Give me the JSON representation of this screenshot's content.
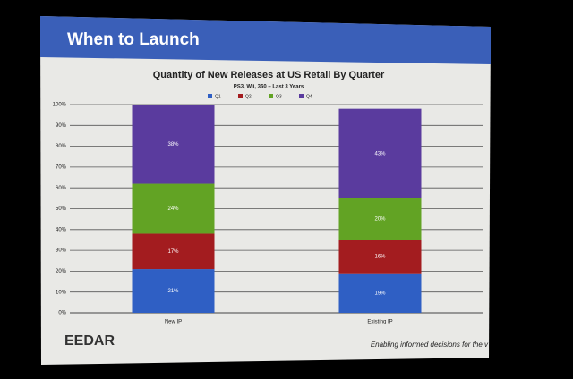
{
  "slide_title": "When to Launch",
  "footer": {
    "logo": "EEDAR",
    "tagline": "Enabling informed decisions for the v"
  },
  "chart_data": {
    "type": "stacked_bar",
    "title": "Quantity of New Releases at US Retail By Quarter",
    "subtitle": "PS3, Wii, 360 – Last 3 Years",
    "categories": [
      "New IP",
      "Existing IP"
    ],
    "series": [
      {
        "name": "Q1",
        "color": "#2f5fc4",
        "values": [
          21,
          19
        ],
        "value_labels": [
          "21%",
          "19%"
        ]
      },
      {
        "name": "Q2",
        "color": "#a31c1f",
        "values": [
          17,
          16
        ],
        "value_labels": [
          "17%",
          "16%"
        ]
      },
      {
        "name": "Q3",
        "color": "#62a324",
        "values": [
          24,
          20
        ],
        "value_labels": [
          "24%",
          "20%"
        ]
      },
      {
        "name": "Q4",
        "color": "#5a3b9e",
        "values": [
          38,
          43
        ],
        "value_labels": [
          "38%",
          "43%"
        ]
      }
    ],
    "ylim": [
      0,
      100
    ],
    "yticks": [
      {
        "value": 0,
        "label": "0%"
      },
      {
        "value": 10,
        "label": "10%"
      },
      {
        "value": 20,
        "label": "20%"
      },
      {
        "value": 30,
        "label": "30%"
      },
      {
        "value": 40,
        "label": "40%"
      },
      {
        "value": 50,
        "label": "50%"
      },
      {
        "value": 60,
        "label": "60%"
      },
      {
        "value": 70,
        "label": "70%"
      },
      {
        "value": 80,
        "label": "80%"
      },
      {
        "value": 90,
        "label": "90%"
      },
      {
        "value": 100,
        "label": "100%"
      }
    ],
    "grid": true,
    "legend": "top"
  }
}
